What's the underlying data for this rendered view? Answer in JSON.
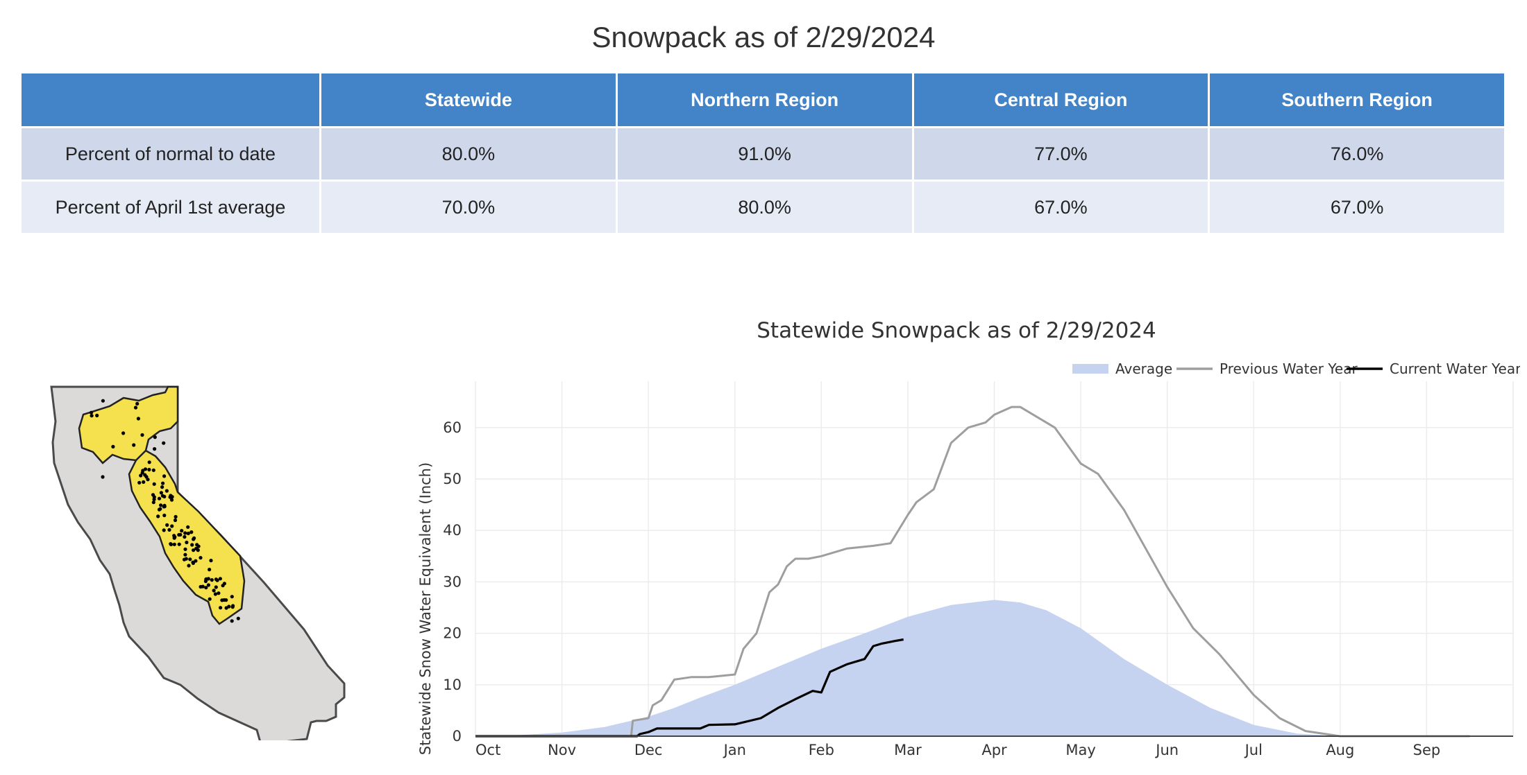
{
  "page_title": "Snowpack as of 2/29/2024",
  "table": {
    "headers": [
      "",
      "Statewide",
      "Northern Region",
      "Central Region",
      "Southern Region"
    ],
    "rows": [
      {
        "label": "Percent of normal to date",
        "values": [
          "80.0%",
          "91.0%",
          "77.0%",
          "76.0%"
        ]
      },
      {
        "label": "Percent of April 1st average",
        "values": [
          "70.0%",
          "80.0%",
          "67.0%",
          "67.0%"
        ]
      }
    ]
  },
  "map": {
    "state_fill": "#dcd9d9",
    "region_fill": "#f5e04e",
    "outline": "#4a4a4a"
  },
  "chart_data": {
    "type": "area",
    "title": "Statewide Snowpack as of 2/29/2024",
    "ylabel": "Statewide Snow Water Equivalent (Inch)",
    "xlabel": "",
    "x_ticks": [
      "Oct",
      "Nov",
      "Dec",
      "Jan",
      "Feb",
      "Mar",
      "Apr",
      "May",
      "Jun",
      "Jul",
      "Aug",
      "Sep"
    ],
    "x_unit": "month index from Oct 1 (Oct = 0)",
    "ylim": [
      0,
      69
    ],
    "y_ticks": [
      0,
      10,
      20,
      30,
      40,
      50,
      60
    ],
    "grid": true,
    "legend_position": "top-right",
    "series": [
      {
        "name": "Average",
        "style": "area",
        "color": "#c5d3f0",
        "x": [
          0,
          0.5,
          1,
          1.5,
          1.75,
          2,
          2.3,
          2.6,
          3,
          3.5,
          4,
          4.5,
          5,
          5.5,
          6,
          6.3,
          6.6,
          7,
          7.5,
          8,
          8.5,
          9,
          9.5,
          10,
          10.5,
          11,
          11.5
        ],
        "y": [
          0,
          0.2,
          0.7,
          1.8,
          2.8,
          3.8,
          5.5,
          7.5,
          10,
          13.5,
          17,
          20,
          23.2,
          25.5,
          26.5,
          26,
          24.5,
          21,
          15,
          10,
          5.5,
          2.2,
          0.5,
          0,
          0,
          0,
          0
        ]
      },
      {
        "name": "Previous Water Year",
        "style": "line",
        "color": "#9e9e9e",
        "x": [
          0,
          1.5,
          1.8,
          1.82,
          2.0,
          2.05,
          2.15,
          2.3,
          2.5,
          2.7,
          3.0,
          3.1,
          3.25,
          3.4,
          3.5,
          3.6,
          3.7,
          3.85,
          4.0,
          4.3,
          4.6,
          4.8,
          5.0,
          5.1,
          5.3,
          5.5,
          5.7,
          5.9,
          6.0,
          6.2,
          6.3,
          6.5,
          6.7,
          7.0,
          7.2,
          7.5,
          8.0,
          8.3,
          8.6,
          9.0,
          9.3,
          9.6,
          10.0,
          11.5
        ],
        "y": [
          0,
          0,
          0,
          3,
          3.5,
          6,
          7,
          11,
          11.5,
          11.5,
          12,
          17,
          20,
          28,
          29.5,
          33,
          34.5,
          34.5,
          35,
          36.5,
          37,
          37.5,
          43,
          45.5,
          48,
          57,
          60,
          61,
          62.5,
          64,
          64,
          62,
          60,
          53,
          51,
          44,
          29,
          21,
          16,
          8,
          3.5,
          1,
          0,
          0
        ]
      },
      {
        "name": "Current Water Year",
        "style": "line",
        "color": "#000000",
        "x": [
          0,
          1.5,
          1.87,
          1.9,
          2.0,
          2.1,
          2.3,
          2.6,
          2.7,
          3.0,
          3.3,
          3.5,
          3.7,
          3.9,
          4.0,
          4.1,
          4.3,
          4.5,
          4.6,
          4.7,
          4.85,
          4.95
        ],
        "y": [
          0,
          0,
          0,
          0.4,
          0.8,
          1.5,
          1.5,
          1.5,
          2.2,
          2.3,
          3.5,
          5.5,
          7.2,
          8.8,
          8.5,
          12.5,
          14,
          15,
          17.5,
          18,
          18.5,
          18.8
        ]
      }
    ]
  }
}
